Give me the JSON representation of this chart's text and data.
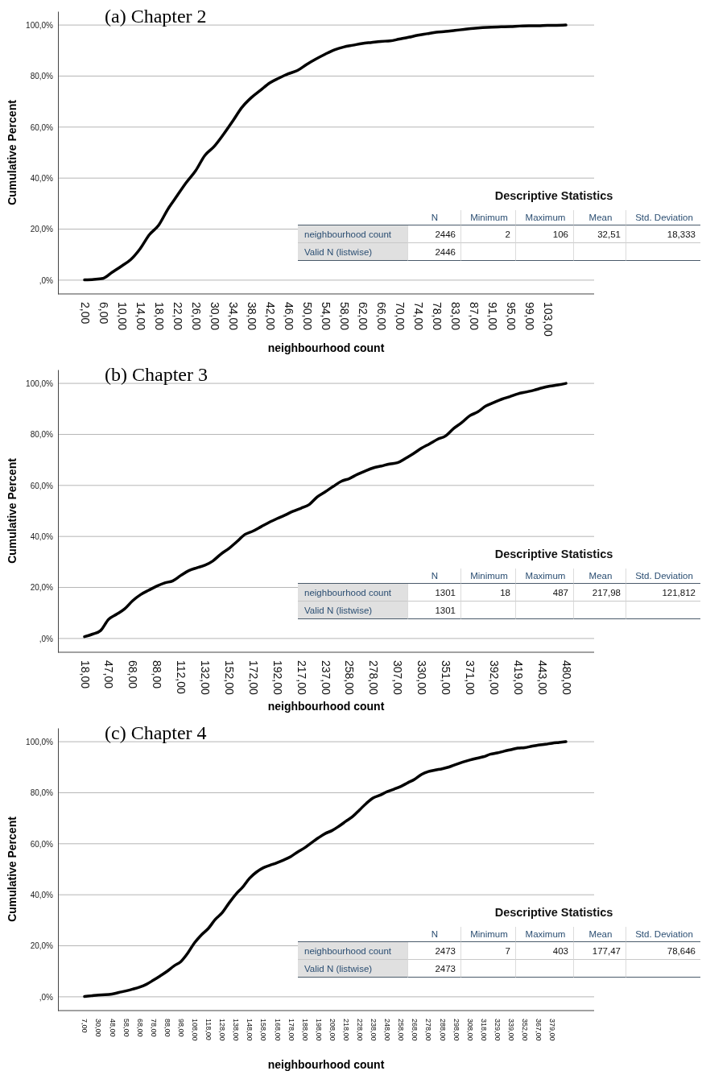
{
  "chart_data": [
    {
      "type": "line",
      "title": "(a) Chapter 2",
      "xlabel": "neighbourhood count",
      "ylabel": "Cumulative Percent",
      "color": "#000000",
      "grid": "y",
      "ylim": [
        -5.4,
        105.4
      ],
      "yticks": [
        {
          "value": 0,
          "label": ",0%"
        },
        {
          "value": 20,
          "label": "20,0%"
        },
        {
          "value": 40,
          "label": "40,0%"
        },
        {
          "value": 60,
          "label": "60,0%"
        },
        {
          "value": 80,
          "label": "80,0%"
        },
        {
          "value": 100,
          "label": "100,0%"
        }
      ],
      "categories": [
        "2,00",
        null,
        "6,00",
        null,
        "10,00",
        null,
        "14,00",
        null,
        "18,00",
        null,
        "22,00",
        null,
        "26,00",
        null,
        "30,00",
        null,
        "34,00",
        null,
        "38,00",
        null,
        "42,00",
        null,
        "46,00",
        null,
        "50,00",
        null,
        "54,00",
        null,
        "58,00",
        null,
        "62,00",
        null,
        "66,00",
        null,
        "70,00",
        null,
        "74,00",
        null,
        "78,00",
        null,
        "83,00",
        null,
        "87,00",
        null,
        "91,00",
        null,
        "95,00",
        null,
        "99,00",
        null,
        "103,00",
        null,
        null
      ],
      "values": [
        0.1,
        0.3,
        0.7,
        3.1,
        5.5,
        8.1,
        12.3,
        17.8,
        21.5,
        27.8,
        33.1,
        38.3,
        42.9,
        48.9,
        52.4,
        57.1,
        62.3,
        67.7,
        71.5,
        74.4,
        77.3,
        79.2,
        80.9,
        82.2,
        84.6,
        86.7,
        88.6,
        90.3,
        91.4,
        92.1,
        92.8,
        93.2,
        93.6,
        93.8,
        94.5,
        95.2,
        96.0,
        96.6,
        97.2,
        97.5,
        97.9,
        98.3,
        98.7,
        99.0,
        99.2,
        99.3,
        99.4,
        99.6,
        99.7,
        99.7,
        99.9,
        99.9,
        100
      ],
      "annotations": [
        "Descriptive Statistics",
        "N",
        "Minimum",
        "Maximum",
        "Mean",
        "Std. Deviation",
        "neighbourhood count",
        "2446",
        "2",
        "106",
        "32,51",
        "18,333",
        "Valid N (listwise)",
        "2446"
      ]
    },
    {
      "type": "line",
      "title": "(b) Chapter 3",
      "xlabel": "neighbourhood count",
      "ylabel": "Cumulative Percent",
      "color": "#000000",
      "grid": "y",
      "ylim": [
        -5.4,
        105.4
      ],
      "yticks": [
        {
          "value": 0,
          "label": ",0%"
        },
        {
          "value": 20,
          "label": "20,0%"
        },
        {
          "value": 40,
          "label": "40,0%"
        },
        {
          "value": 60,
          "label": "60,0%"
        },
        {
          "value": 80,
          "label": "80,0%"
        },
        {
          "value": 100,
          "label": "100,0%"
        }
      ],
      "categories": [
        "18,00",
        null,
        null,
        "47,00",
        null,
        null,
        "68,00",
        null,
        null,
        "88,00",
        null,
        null,
        "112,00",
        null,
        null,
        "132,00",
        null,
        null,
        "152,00",
        null,
        null,
        "172,00",
        null,
        null,
        "192,00",
        null,
        null,
        "217,00",
        null,
        null,
        "237,00",
        null,
        null,
        "258,00",
        null,
        null,
        "278,00",
        null,
        null,
        "307,00",
        null,
        null,
        "330,00",
        null,
        null,
        "351,00",
        null,
        null,
        "371,00",
        null,
        null,
        "392,00",
        null,
        null,
        "419,00",
        null,
        null,
        "443,00",
        null,
        null,
        "480,00"
      ],
      "values": [
        0.7,
        1.7,
        3.1,
        7.5,
        9.5,
        11.6,
        14.8,
        17.2,
        18.9,
        20.5,
        21.8,
        22.6,
        24.7,
        26.6,
        27.7,
        28.7,
        30.4,
        33.1,
        35.3,
        38.0,
        40.8,
        42.1,
        43.8,
        45.5,
        47.0,
        48.4,
        49.9,
        51.1,
        52.5,
        55.5,
        57.5,
        59.6,
        61.6,
        62.7,
        64.3,
        65.7,
        66.9,
        67.6,
        68.4,
        68.9,
        70.6,
        72.5,
        74.6,
        76.3,
        78.1,
        79.4,
        82.3,
        84.6,
        87.3,
        88.8,
        91.1,
        92.5,
        93.8,
        94.8,
        95.9,
        96.6,
        97.3,
        98.2,
        98.9,
        99.4,
        100
      ],
      "annotations": [
        "Descriptive Statistics",
        "N",
        "Minimum",
        "Maximum",
        "Mean",
        "Std. Deviation",
        "neighbourhood count",
        "1301",
        "18",
        "487",
        "217,98",
        "121,812",
        "Valid N (listwise)",
        "1301"
      ]
    },
    {
      "type": "line",
      "title": "(c) Chapter 4",
      "xlabel": "neighbourhood count",
      "ylabel": "Cumulative Percent",
      "color": "#000000",
      "grid": "y",
      "ylim": [
        -5.4,
        105.4
      ],
      "yticks": [
        {
          "value": 0,
          "label": ",0%"
        },
        {
          "value": 20,
          "label": "20,0%"
        },
        {
          "value": 40,
          "label": "40,0%"
        },
        {
          "value": 60,
          "label": "60,0%"
        },
        {
          "value": 80,
          "label": "80,0%"
        },
        {
          "value": 100,
          "label": "100,0%"
        }
      ],
      "categories": [
        "7,00",
        null,
        "30,00",
        null,
        "48,00",
        null,
        "58,00",
        null,
        "68,00",
        null,
        "78,00",
        null,
        "88,00",
        null,
        "98,00",
        null,
        "108,00",
        null,
        "118,00",
        null,
        "128,00",
        null,
        "138,00",
        null,
        "148,00",
        null,
        "158,00",
        null,
        "168,00",
        null,
        "178,00",
        null,
        "188,00",
        null,
        "198,00",
        null,
        "208,00",
        null,
        "218,00",
        null,
        "228,00",
        null,
        "238,00",
        null,
        "248,00",
        null,
        "258,00",
        null,
        "268,00",
        null,
        "278,00",
        null,
        "288,00",
        null,
        "298,00",
        null,
        "308,00",
        null,
        "318,00",
        null,
        "329,00",
        null,
        "339,00",
        null,
        "352,00",
        null,
        "367,00",
        null,
        "379,00",
        null,
        null
      ],
      "values": [
        0.1,
        0.4,
        0.7,
        0.8,
        1.1,
        1.7,
        2.3,
        3.0,
        3.8,
        4.9,
        6.5,
        8.2,
        10.0,
        12.1,
        13.8,
        17.1,
        21.2,
        24.3,
        26.8,
        30.3,
        32.9,
        36.7,
        40.2,
        43.0,
        46.5,
        48.9,
        50.6,
        51.6,
        52.6,
        53.7,
        55.0,
        56.8,
        58.4,
        60.4,
        62.3,
        64.0,
        65.2,
        66.9,
        68.8,
        70.7,
        73.3,
        75.9,
        78.0,
        79.1,
        80.4,
        81.4,
        82.5,
        83.9,
        85.3,
        87.2,
        88.3,
        88.9,
        89.4,
        90.1,
        91.1,
        92.0,
        92.8,
        93.5,
        94.1,
        95.1,
        95.6,
        96.3,
        96.9,
        97.5,
        97.7,
        98.2,
        98.7,
        99.0,
        99.4,
        99.7,
        100
      ],
      "annotations": [
        "Descriptive Statistics",
        "N",
        "Minimum",
        "Maximum",
        "Mean",
        "Std. Deviation",
        "neighbourhood count",
        "2473",
        "7",
        "403",
        "177,47",
        "78,646",
        "Valid N (listwise)",
        "2473"
      ]
    }
  ]
}
